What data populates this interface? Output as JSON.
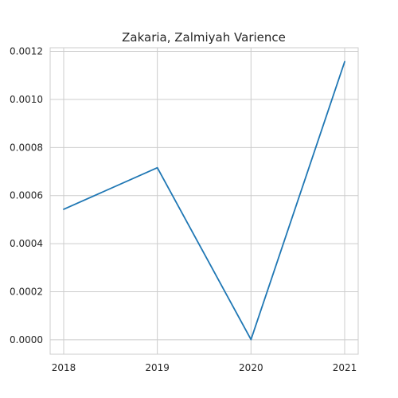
{
  "chart_data": {
    "type": "line",
    "title": "Zakaria, Zalmiyah Varience",
    "xlabel": "",
    "ylabel": "",
    "categories": [
      "2018",
      "2019",
      "2020",
      "2021"
    ],
    "series": [
      {
        "values": [
          0.000543,
          0.000716,
          1e-06,
          0.001157
        ],
        "color": "#1f77b4"
      }
    ],
    "ylim": [
      -6e-05,
      0.001215
    ],
    "yticks": [
      0.0,
      0.0002,
      0.0004,
      0.0006,
      0.0008,
      0.001,
      0.0012
    ],
    "ytick_labels": [
      "0.0000",
      "0.0002",
      "0.0004",
      "0.0006",
      "0.0008",
      "0.0010",
      "0.0012"
    ],
    "grid": true,
    "legend": "none"
  }
}
